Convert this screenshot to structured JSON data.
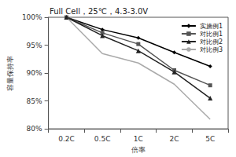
{
  "chart_data": {
    "type": "line",
    "title": "Full Cell，25℃，4.3-3.0V",
    "x_label": "倍率",
    "y_label": "容量保持率",
    "categories": [
      "0.2C",
      "0.5C",
      "1C",
      "2C",
      "5C"
    ],
    "series": [
      {
        "name": "实施例1",
        "color": "#000000",
        "marker": "diamond",
        "line_style": "solid",
        "values": [
          100,
          97.8,
          96.3,
          93.7,
          91.2
        ]
      },
      {
        "name": "对比例1",
        "color": "#555555",
        "marker": "square",
        "line_style": "solid",
        "values": [
          100,
          97.2,
          95.2,
          90.5,
          87.8
        ]
      },
      {
        "name": "对比例2",
        "color": "#222222",
        "marker": "triangle",
        "line_style": "solid",
        "values": [
          100,
          96.7,
          94.0,
          90.2,
          85.5
        ]
      },
      {
        "name": "对比例3",
        "color": "#aaaaaa",
        "marker": "none",
        "line_style": "solid",
        "values": [
          100,
          93.5,
          91.8,
          88.0,
          81.7
        ]
      }
    ],
    "ylim": [
      80,
      100
    ],
    "yticks": [
      {
        "value": 80,
        "label": "80%"
      },
      {
        "value": 85,
        "label": "85%"
      },
      {
        "value": 90,
        "label": "90%"
      },
      {
        "value": 95,
        "label": "95%"
      },
      {
        "value": 100,
        "label": "100%"
      }
    ],
    "grid": false,
    "legend": "upper right"
  }
}
